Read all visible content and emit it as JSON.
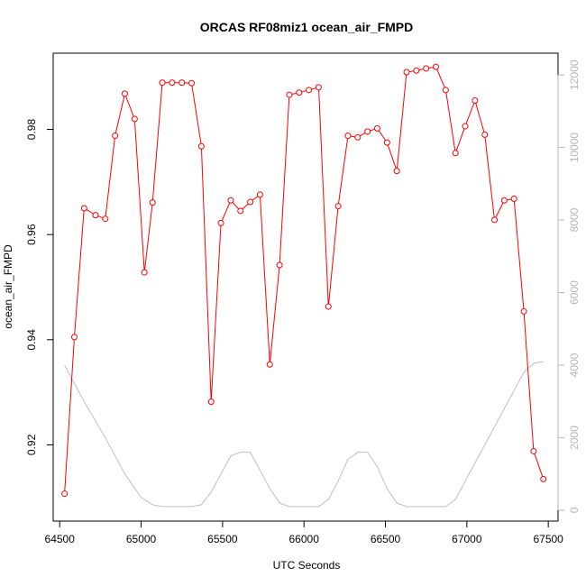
{
  "chart_data": {
    "type": "line",
    "title": "ORCAS RF08miz1 ocean_air_FMPD",
    "xlabel": "UTC Seconds",
    "ylabel": "ocean_air_FMPD",
    "xlim": [
      64460,
      67560
    ],
    "ylim": [
      0.9055,
      0.9945
    ],
    "y2lim": [
      -300,
      12600
    ],
    "x_ticks": [
      64500,
      65000,
      65500,
      66000,
      66500,
      67000,
      67500
    ],
    "y_ticks": [
      0.92,
      0.94,
      0.96,
      0.98
    ],
    "y2_ticks": [
      0,
      2000,
      4000,
      6000,
      8000,
      10000,
      12000
    ],
    "grid": false,
    "colors": {
      "primary": "#ff0000",
      "secondary": "#c0c0c0",
      "secondary_axis": "#b5b5b5"
    },
    "series": [
      {
        "axis": "left",
        "color": "#ff0000",
        "marker": "circle-open",
        "points": [
          [
            64530,
            0.9107
          ],
          [
            64590,
            0.9405
          ],
          [
            64650,
            0.965
          ],
          [
            64720,
            0.9637
          ],
          [
            64780,
            0.963
          ],
          [
            64840,
            0.9788
          ],
          [
            64900,
            0.9868
          ],
          [
            64960,
            0.982
          ],
          [
            65020,
            0.9528
          ],
          [
            65070,
            0.9661
          ],
          [
            65130,
            0.9889
          ],
          [
            65190,
            0.9889
          ],
          [
            65250,
            0.9889
          ],
          [
            65310,
            0.9888
          ],
          [
            65370,
            0.9768
          ],
          [
            65430,
            0.9282
          ],
          [
            65490,
            0.9622
          ],
          [
            65550,
            0.9665
          ],
          [
            65610,
            0.9645
          ],
          [
            65670,
            0.9662
          ],
          [
            65730,
            0.9676
          ],
          [
            65790,
            0.9353
          ],
          [
            65850,
            0.9542
          ],
          [
            65910,
            0.9866
          ],
          [
            65970,
            0.987
          ],
          [
            66030,
            0.9875
          ],
          [
            66090,
            0.988
          ],
          [
            66150,
            0.9463
          ],
          [
            66210,
            0.9654
          ],
          [
            66270,
            0.9788
          ],
          [
            66330,
            0.9785
          ],
          [
            66390,
            0.9796
          ],
          [
            66450,
            0.9802
          ],
          [
            66510,
            0.9775
          ],
          [
            66570,
            0.9721
          ],
          [
            66630,
            0.9909
          ],
          [
            66690,
            0.9912
          ],
          [
            66750,
            0.9916
          ],
          [
            66810,
            0.9919
          ],
          [
            66870,
            0.9875
          ],
          [
            66930,
            0.9755
          ],
          [
            66990,
            0.9806
          ],
          [
            67050,
            0.9855
          ],
          [
            67110,
            0.979
          ],
          [
            67170,
            0.9628
          ],
          [
            67230,
            0.9665
          ],
          [
            67290,
            0.9668
          ],
          [
            67350,
            0.9454
          ],
          [
            67410,
            0.9188
          ],
          [
            67470,
            0.9135
          ]
        ]
      },
      {
        "axis": "right",
        "color": "#c0c0c0",
        "marker": "none",
        "points": [
          [
            64530,
            4000
          ],
          [
            64650,
            3000
          ],
          [
            64780,
            2000
          ],
          [
            64900,
            1000
          ],
          [
            65000,
            350
          ],
          [
            65070,
            150
          ],
          [
            65130,
            100
          ],
          [
            65310,
            100
          ],
          [
            65370,
            150
          ],
          [
            65430,
            500
          ],
          [
            65490,
            1000
          ],
          [
            65550,
            1500
          ],
          [
            65610,
            1600
          ],
          [
            65670,
            1600
          ],
          [
            65730,
            1100
          ],
          [
            65790,
            600
          ],
          [
            65850,
            200
          ],
          [
            65910,
            100
          ],
          [
            66090,
            100
          ],
          [
            66150,
            300
          ],
          [
            66210,
            800
          ],
          [
            66270,
            1400
          ],
          [
            66330,
            1600
          ],
          [
            66390,
            1600
          ],
          [
            66450,
            1200
          ],
          [
            66510,
            600
          ],
          [
            66570,
            200
          ],
          [
            66630,
            100
          ],
          [
            66870,
            100
          ],
          [
            66930,
            300
          ],
          [
            66990,
            800
          ],
          [
            67110,
            1800
          ],
          [
            67230,
            2800
          ],
          [
            67350,
            3800
          ],
          [
            67410,
            4050
          ],
          [
            67470,
            4100
          ]
        ]
      }
    ]
  }
}
